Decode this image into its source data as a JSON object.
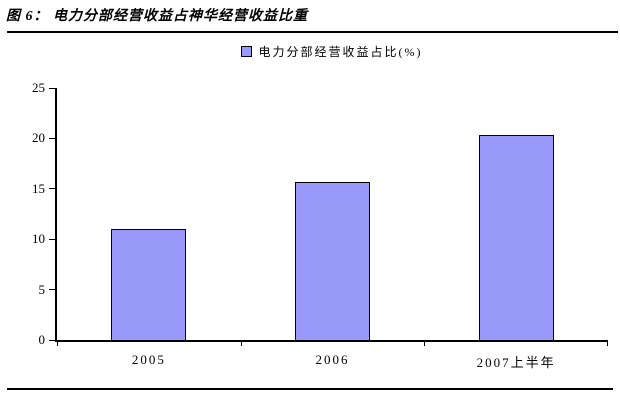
{
  "page": {
    "title": "图 6： 电力分部经营收益占神华经营收益比重"
  },
  "chart_data": {
    "type": "bar",
    "title": "图 6： 电力分部经营收益占神华经营收益比重",
    "legend_position": "top",
    "categories": [
      "2005",
      "2006",
      "2007上半年"
    ],
    "series": [
      {
        "name": "电力分部经营收益占比(%)",
        "values": [
          11.0,
          15.7,
          20.3
        ]
      }
    ],
    "ylabel": "",
    "xlabel": "",
    "ylim": [
      0,
      25
    ],
    "yticks": [
      0,
      5,
      10,
      15,
      20,
      25
    ],
    "grid": false,
    "colors": {
      "bar_fill": "#9999FA",
      "bar_border": "#000000",
      "axis": "#000000",
      "text": "#000000"
    }
  }
}
